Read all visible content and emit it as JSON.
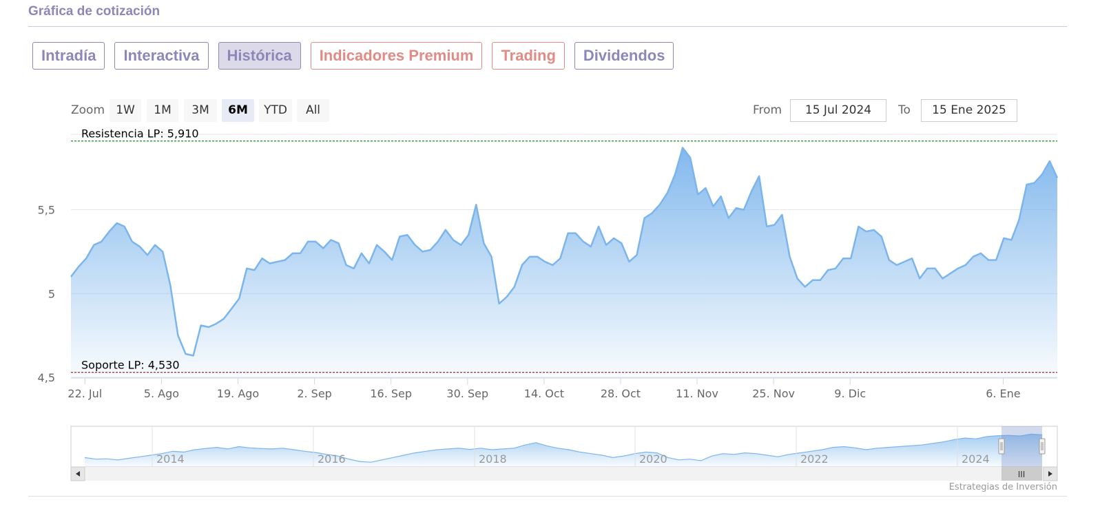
{
  "section_title": "Gráfica de cotización",
  "tabs": [
    {
      "label": "Intradía",
      "state": "normal",
      "color": "#8c87b9"
    },
    {
      "label": "Interactiva",
      "state": "normal",
      "color": "#8c87b9"
    },
    {
      "label": "Histórica",
      "state": "active",
      "color": "#8c87b9"
    },
    {
      "label": "Indicadores Premium",
      "state": "normal",
      "color": "#e28b85"
    },
    {
      "label": "Trading",
      "state": "normal",
      "color": "#e28b85"
    },
    {
      "label": "Dividendos",
      "state": "normal",
      "color": "#8c87b9"
    }
  ],
  "range_selector": {
    "zoom_label": "Zoom",
    "buttons": [
      "1W",
      "1M",
      "3M",
      "6M",
      "YTD",
      "All"
    ],
    "selected": "6M",
    "from_label": "From",
    "from_value": "15 Jul 2024",
    "to_label": "To",
    "to_value": "15 Ene 2025"
  },
  "chart_data": {
    "type": "area",
    "ylim": [
      4.5,
      5.95
    ],
    "y_ticks": [
      {
        "value": 4.5,
        "label": "4,5"
      },
      {
        "value": 5.0,
        "label": "5"
      },
      {
        "value": 5.5,
        "label": "5,5"
      }
    ],
    "x_tick_labels": [
      "22. Jul",
      "5. Ago",
      "19. Ago",
      "2. Sep",
      "16. Sep",
      "30. Sep",
      "14. Oct",
      "28. Oct",
      "11. Nov",
      "25. Nov",
      "9. Dic",
      "6. Ene"
    ],
    "x_tick_positions": [
      0.15,
      0.97,
      1.79,
      2.61,
      3.43,
      4.25,
      5.07,
      5.89,
      6.71,
      7.53,
      8.35,
      9.99
    ],
    "x_range": [
      0,
      10.57
    ],
    "plot_lines": [
      {
        "label": "Resistencia LP: 5,910",
        "value": 5.91,
        "color": "#1a8a1a"
      },
      {
        "label": "Soporte LP: 4,530",
        "value": 4.53,
        "color": "#8b1a1a"
      }
    ],
    "series": [
      {
        "color": "#7cb5ec",
        "values": [
          5.1,
          5.16,
          5.21,
          5.29,
          5.31,
          5.37,
          5.42,
          5.4,
          5.31,
          5.28,
          5.23,
          5.29,
          5.25,
          5.05,
          4.75,
          4.64,
          4.63,
          4.81,
          4.8,
          4.82,
          4.85,
          4.91,
          4.97,
          5.15,
          5.14,
          5.21,
          5.18,
          5.19,
          5.2,
          5.24,
          5.24,
          5.31,
          5.31,
          5.27,
          5.32,
          5.3,
          5.17,
          5.15,
          5.24,
          5.18,
          5.29,
          5.25,
          5.2,
          5.34,
          5.35,
          5.29,
          5.25,
          5.26,
          5.31,
          5.38,
          5.32,
          5.29,
          5.35,
          5.53,
          5.3,
          5.22,
          4.94,
          4.98,
          5.04,
          5.17,
          5.22,
          5.22,
          5.19,
          5.17,
          5.21,
          5.36,
          5.36,
          5.31,
          5.28,
          5.4,
          5.29,
          5.33,
          5.3,
          5.19,
          5.23,
          5.45,
          5.48,
          5.53,
          5.6,
          5.71,
          5.87,
          5.81,
          5.59,
          5.63,
          5.52,
          5.58,
          5.45,
          5.51,
          5.5,
          5.61,
          5.7,
          5.4,
          5.41,
          5.47,
          5.22,
          5.09,
          5.04,
          5.08,
          5.08,
          5.14,
          5.15,
          5.21,
          5.21,
          5.4,
          5.37,
          5.38,
          5.34,
          5.2,
          5.17,
          5.19,
          5.21,
          5.09,
          5.15,
          5.15,
          5.09,
          5.12,
          5.15,
          5.17,
          5.22,
          5.24,
          5.2,
          5.2,
          5.33,
          5.32,
          5.44,
          5.65,
          5.66,
          5.71,
          5.79,
          5.69
        ]
      }
    ]
  },
  "navigator": {
    "year_labels": [
      "2014",
      "2016",
      "2018",
      "2020",
      "2022",
      "2024"
    ],
    "values": [
      4.2,
      4.1,
      4.12,
      4.05,
      4.15,
      4.25,
      4.35,
      4.45,
      4.6,
      4.55,
      4.7,
      4.78,
      4.85,
      4.75,
      4.9,
      4.82,
      4.78,
      4.75,
      4.8,
      4.7,
      4.6,
      4.52,
      4.4,
      4.3,
      4.1,
      3.95,
      3.9,
      4.05,
      4.2,
      4.35,
      4.5,
      4.6,
      4.7,
      4.75,
      4.8,
      4.72,
      4.8,
      4.7,
      4.75,
      4.8,
      5.0,
      5.15,
      4.95,
      4.8,
      4.7,
      4.55,
      4.45,
      4.35,
      4.2,
      4.3,
      4.45,
      4.55,
      4.5,
      4.2,
      4.05,
      4.1,
      4.0,
      4.3,
      4.45,
      4.4,
      4.5,
      4.45,
      4.35,
      4.25,
      4.4,
      4.5,
      4.6,
      4.7,
      4.85,
      4.9,
      4.82,
      4.7,
      4.8,
      4.85,
      4.9,
      4.95,
      5.0,
      5.1,
      5.2,
      5.35,
      5.45,
      5.4,
      5.55,
      5.6,
      5.62,
      5.58,
      5.7,
      5.65
    ],
    "range_label": "III"
  },
  "credit": "Estrategias de Inversión"
}
